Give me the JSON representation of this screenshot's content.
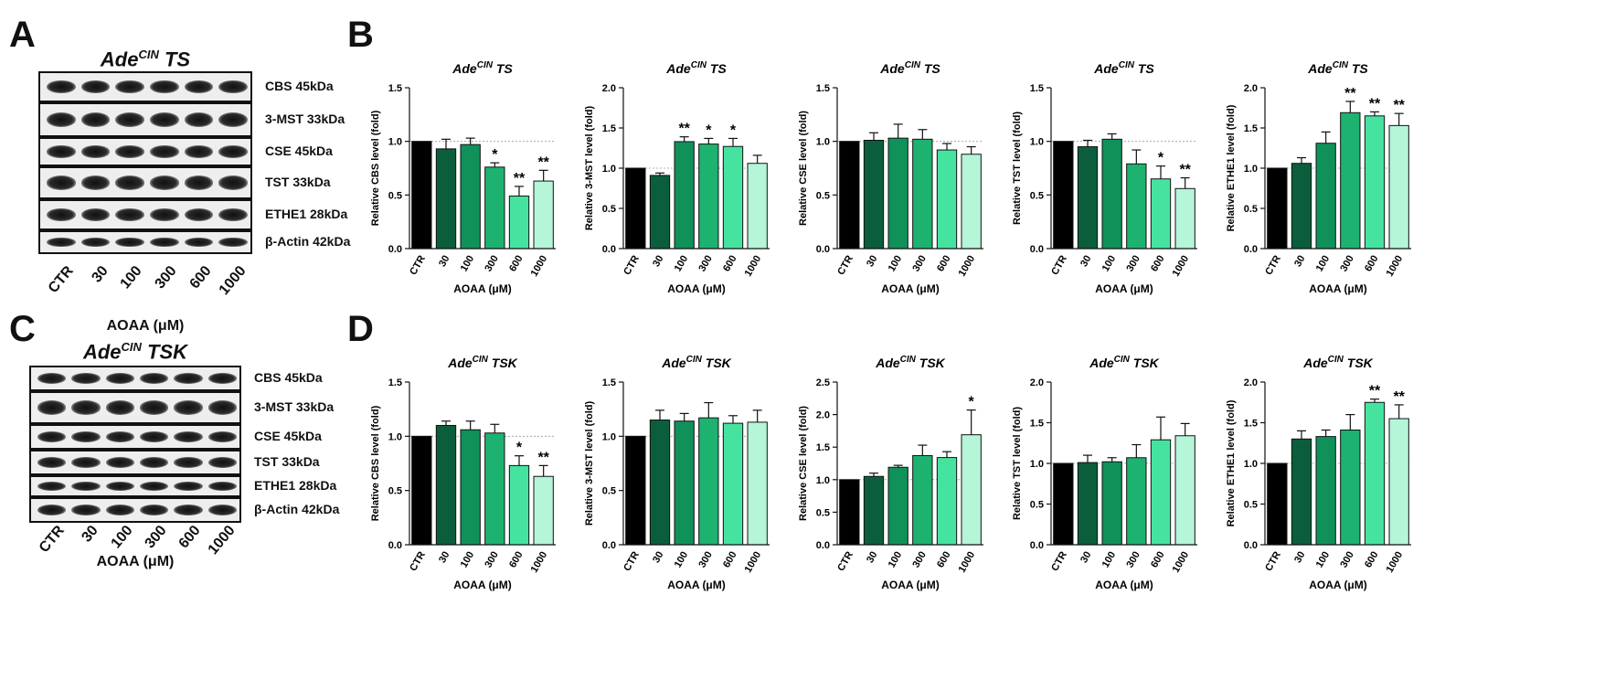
{
  "panels": {
    "A": "A",
    "B": "B",
    "C": "C",
    "D": "D"
  },
  "blots": [
    {
      "title_main": "Ade",
      "title_sup": "CIN",
      "title_suffix": " TS",
      "labels": [
        "CBS 45kDa",
        "3-MST 33kDa",
        "CSE 45kDa",
        "TST 33kDa",
        "ETHE1 28kDa",
        "β-Actin 42kDa"
      ],
      "lanes": [
        "CTR",
        "30",
        "100",
        "300",
        "600",
        "1000"
      ],
      "xlabel": "AOAA (μM)"
    },
    {
      "title_main": "Ade",
      "title_sup": "CIN",
      "title_suffix": " TSK",
      "labels": [
        "CBS 45kDa",
        "3-MST 33kDa",
        "CSE 45kDa",
        "TST 33kDa",
        "ETHE1 28kDa",
        "β-Actin 42kDa"
      ],
      "lanes": [
        "CTR",
        "30",
        "100",
        "300",
        "600",
        "1000"
      ],
      "xlabel": "AOAA (μM)"
    }
  ],
  "colors": [
    "#000000",
    "#0b5e3b",
    "#10915a",
    "#1db270",
    "#46e3a0",
    "#b5f5d8"
  ],
  "chart_data": [
    {
      "type": "bar",
      "title_main": "Ade",
      "title_sup": "CIN",
      "title_suffix": " TS",
      "ylabel": "Relative CBS level (fold)",
      "xlabel": "AOAA (μM)",
      "categories": [
        "CTR",
        "30",
        "100",
        "300",
        "600",
        "1000"
      ],
      "values": [
        1.0,
        0.93,
        0.97,
        0.76,
        0.49,
        0.63
      ],
      "errors": [
        0,
        0.09,
        0.06,
        0.04,
        0.09,
        0.1
      ],
      "sig": [
        "",
        "",
        "",
        "*",
        "**",
        "**"
      ],
      "ylim": [
        0,
        1.5
      ],
      "yticks": [
        "0.0",
        "0.5",
        "1.0",
        "1.5"
      ],
      "ref": 1.0
    },
    {
      "type": "bar",
      "title_main": "Ade",
      "title_sup": "CIN",
      "title_suffix": " TS",
      "ylabel": "Relative 3-MST level (fold)",
      "xlabel": "AOAA (μM)",
      "categories": [
        "CTR",
        "30",
        "100",
        "300",
        "600",
        "1000"
      ],
      "values": [
        1.0,
        0.91,
        1.33,
        1.3,
        1.27,
        1.06
      ],
      "errors": [
        0,
        0.03,
        0.06,
        0.07,
        0.1,
        0.1
      ],
      "sig": [
        "",
        "",
        "**",
        "*",
        "*",
        ""
      ],
      "ylim": [
        0,
        2.0
      ],
      "yticks": [
        "0.0",
        "0.5",
        "1.0",
        "1.5",
        "2.0"
      ],
      "ref": 1.0
    },
    {
      "type": "bar",
      "title_main": "Ade",
      "title_sup": "CIN",
      "title_suffix": " TS",
      "ylabel": "Relative CSE level (fold)",
      "xlabel": "AOAA (μM)",
      "categories": [
        "CTR",
        "30",
        "100",
        "300",
        "600",
        "1000"
      ],
      "values": [
        1.0,
        1.01,
        1.03,
        1.02,
        0.92,
        0.88
      ],
      "errors": [
        0,
        0.07,
        0.13,
        0.09,
        0.06,
        0.07
      ],
      "sig": [
        "",
        "",
        "",
        "",
        "",
        ""
      ],
      "ylim": [
        0,
        1.5
      ],
      "yticks": [
        "0.0",
        "0.5",
        "1.0",
        "1.5"
      ],
      "ref": 1.0
    },
    {
      "type": "bar",
      "title_main": "Ade",
      "title_sup": "CIN",
      "title_suffix": " TS",
      "ylabel": "Relative TST level (fold)",
      "xlabel": "AOAA (μM)",
      "categories": [
        "CTR",
        "30",
        "100",
        "300",
        "600",
        "1000"
      ],
      "values": [
        1.0,
        0.95,
        1.02,
        0.79,
        0.65,
        0.56
      ],
      "errors": [
        0,
        0.06,
        0.05,
        0.13,
        0.12,
        0.1
      ],
      "sig": [
        "",
        "",
        "",
        "",
        "*",
        "**"
      ],
      "ylim": [
        0,
        1.5
      ],
      "yticks": [
        "0.0",
        "0.5",
        "1.0",
        "1.5"
      ],
      "ref": 1.0
    },
    {
      "type": "bar",
      "title_main": "Ade",
      "title_sup": "CIN",
      "title_suffix": " TS",
      "ylabel": "Relative ETHE1 level (fold)",
      "xlabel": "AOAA (μM)",
      "categories": [
        "CTR",
        "30",
        "100",
        "300",
        "600",
        "1000"
      ],
      "values": [
        1.0,
        1.06,
        1.31,
        1.69,
        1.65,
        1.53
      ],
      "errors": [
        0,
        0.07,
        0.14,
        0.14,
        0.05,
        0.15
      ],
      "sig": [
        "",
        "",
        "",
        "**",
        "**",
        "**"
      ],
      "ylim": [
        0,
        2.0
      ],
      "yticks": [
        "0.0",
        "0.5",
        "1.0",
        "1.5",
        "2.0"
      ],
      "ref": 1.0
    },
    {
      "type": "bar",
      "title_main": "Ade",
      "title_sup": "CIN",
      "title_suffix": " TSK",
      "ylabel": "Relative CBS level (fold)",
      "xlabel": "AOAA (μM)",
      "categories": [
        "CTR",
        "30",
        "100",
        "300",
        "600",
        "1000"
      ],
      "values": [
        1.0,
        1.1,
        1.06,
        1.03,
        0.73,
        0.63
      ],
      "errors": [
        0,
        0.04,
        0.08,
        0.08,
        0.09,
        0.1
      ],
      "sig": [
        "",
        "",
        "",
        "",
        "*",
        "**"
      ],
      "ylim": [
        0,
        1.5
      ],
      "yticks": [
        "0.0",
        "0.5",
        "1.0",
        "1.5"
      ],
      "ref": 1.0
    },
    {
      "type": "bar",
      "title_main": "Ade",
      "title_sup": "CIN",
      "title_suffix": " TSK",
      "ylabel": "Relative 3-MST level (fold)",
      "xlabel": "AOAA (μM)",
      "categories": [
        "CTR",
        "30",
        "100",
        "300",
        "600",
        "1000"
      ],
      "values": [
        1.0,
        1.15,
        1.14,
        1.17,
        1.12,
        1.13
      ],
      "errors": [
        0,
        0.09,
        0.07,
        0.14,
        0.07,
        0.11
      ],
      "sig": [
        "",
        "",
        "",
        "",
        "",
        ""
      ],
      "ylim": [
        0,
        1.5
      ],
      "yticks": [
        "0.0",
        "0.5",
        "1.0",
        "1.5"
      ],
      "ref": 1.0
    },
    {
      "type": "bar",
      "title_main": "Ade",
      "title_sup": "CIN",
      "title_suffix": " TSK",
      "ylabel": "Relative CSE level (fold)",
      "xlabel": "AOAA (μM)",
      "categories": [
        "CTR",
        "30",
        "100",
        "300",
        "600",
        "1000"
      ],
      "values": [
        1.0,
        1.05,
        1.19,
        1.37,
        1.34,
        1.69
      ],
      "errors": [
        0,
        0.05,
        0.03,
        0.16,
        0.09,
        0.38
      ],
      "sig": [
        "",
        "",
        "",
        "",
        "",
        "*"
      ],
      "ylim": [
        0,
        2.5
      ],
      "yticks": [
        "0.0",
        "0.5",
        "1.0",
        "1.5",
        "2.0",
        "2.5"
      ],
      "ref": 1.0
    },
    {
      "type": "bar",
      "title_main": "Ade",
      "title_sup": "CIN",
      "title_suffix": " TSK",
      "ylabel": "Relative TST level (fold)",
      "xlabel": "AOAA (μM)",
      "categories": [
        "CTR",
        "30",
        "100",
        "300",
        "600",
        "1000"
      ],
      "values": [
        1.0,
        1.01,
        1.02,
        1.07,
        1.29,
        1.34
      ],
      "errors": [
        0,
        0.09,
        0.05,
        0.16,
        0.28,
        0.15
      ],
      "sig": [
        "",
        "",
        "",
        "",
        "",
        ""
      ],
      "ylim": [
        0,
        2.0
      ],
      "yticks": [
        "0.0",
        "0.5",
        "1.0",
        "1.5",
        "2.0"
      ],
      "ref": 1.0
    },
    {
      "type": "bar",
      "title_main": "Ade",
      "title_sup": "CIN",
      "title_suffix": " TSK",
      "ylabel": "Relative ETHE1 level (fold)",
      "xlabel": "AOAA (μM)",
      "categories": [
        "CTR",
        "30",
        "100",
        "300",
        "600",
        "1000"
      ],
      "values": [
        1.0,
        1.3,
        1.33,
        1.41,
        1.75,
        1.55
      ],
      "errors": [
        0,
        0.1,
        0.08,
        0.19,
        0.04,
        0.17
      ],
      "sig": [
        "",
        "",
        "",
        "",
        "**",
        "**"
      ],
      "ylim": [
        0,
        2.0
      ],
      "yticks": [
        "0.0",
        "0.5",
        "1.0",
        "1.5",
        "2.0"
      ],
      "ref": 1.0
    }
  ]
}
